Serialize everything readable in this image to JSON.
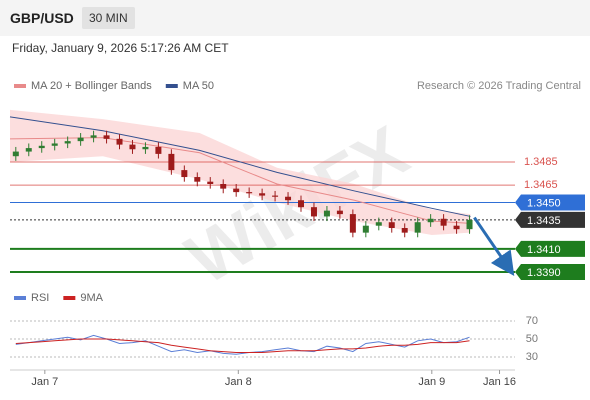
{
  "header": {
    "symbol": "GBP/USD",
    "timeframe": "30 MIN",
    "timestamp": "Friday, January 9, 2026 5:17:26 AM CET"
  },
  "watermark": "WikiFX",
  "chart_data": [
    {
      "type": "candlestick",
      "source": "Research © 2026 Trading Central",
      "xlim": [
        -0.18,
        2.43
      ],
      "ylim": [
        1.3375,
        1.3545
      ],
      "colors": {
        "up": "#2f7d32",
        "down": "#9e1c1c"
      },
      "x": [
        -0.15,
        -0.083,
        -0.016,
        0.051,
        0.118,
        0.185,
        0.252,
        0.319,
        0.386,
        0.453,
        0.52,
        0.587,
        0.654,
        0.721,
        0.788,
        0.855,
        0.922,
        0.989,
        1.056,
        1.123,
        1.19,
        1.257,
        1.324,
        1.391,
        1.458,
        1.525,
        1.592,
        1.659,
        1.726,
        1.793,
        1.86,
        1.927,
        1.994,
        2.061,
        2.128,
        2.195
      ],
      "open": [
        1.349,
        1.3494,
        1.3497,
        1.3499,
        1.3501,
        1.3503,
        1.3506,
        1.3508,
        1.3505,
        1.35,
        1.3496,
        1.3498,
        1.3492,
        1.3478,
        1.3472,
        1.3468,
        1.3466,
        1.3462,
        1.3459,
        1.3458,
        1.3456,
        1.3455,
        1.3452,
        1.3446,
        1.3438,
        1.3443,
        1.344,
        1.3424,
        1.343,
        1.3433,
        1.3428,
        1.3424,
        1.3433,
        1.3436,
        1.343,
        1.3427
      ],
      "high": [
        1.3498,
        1.3501,
        1.3503,
        1.3505,
        1.3507,
        1.351,
        1.3512,
        1.3512,
        1.3509,
        1.3504,
        1.3502,
        1.3502,
        1.3496,
        1.3482,
        1.3476,
        1.3472,
        1.347,
        1.3466,
        1.3463,
        1.3462,
        1.346,
        1.3459,
        1.3456,
        1.345,
        1.3447,
        1.3447,
        1.3444,
        1.3434,
        1.3437,
        1.3437,
        1.3432,
        1.3437,
        1.344,
        1.344,
        1.3434,
        1.3439
      ],
      "low": [
        1.3486,
        1.349,
        1.3493,
        1.3495,
        1.3497,
        1.3499,
        1.3502,
        1.3501,
        1.3496,
        1.3492,
        1.3492,
        1.3488,
        1.3474,
        1.3468,
        1.3464,
        1.3462,
        1.3458,
        1.3455,
        1.3454,
        1.3452,
        1.3451,
        1.3448,
        1.3442,
        1.3434,
        1.3434,
        1.3436,
        1.342,
        1.342,
        1.3426,
        1.3424,
        1.342,
        1.342,
        1.3429,
        1.3426,
        1.3423,
        1.3423
      ],
      "close": [
        1.3494,
        1.3497,
        1.3499,
        1.3501,
        1.3503,
        1.3506,
        1.3508,
        1.3505,
        1.35,
        1.3496,
        1.3498,
        1.3492,
        1.3478,
        1.3472,
        1.3468,
        1.3466,
        1.3462,
        1.3459,
        1.3458,
        1.3456,
        1.3455,
        1.3452,
        1.3446,
        1.3438,
        1.3443,
        1.344,
        1.3424,
        1.343,
        1.3433,
        1.3428,
        1.3424,
        1.3433,
        1.3436,
        1.343,
        1.3427,
        1.3435
      ],
      "series": [
        {
          "name": "MA 20 + Bollinger Bands",
          "color": "#e88a8a",
          "band_color": "#fbd6d6",
          "x": [
            -0.18,
            0.3,
            0.8,
            1.2,
            1.6,
            2.0,
            2.2
          ],
          "values": [
            1.3505,
            1.3506,
            1.3493,
            1.3466,
            1.3452,
            1.3434,
            1.3432
          ],
          "upper": [
            1.353,
            1.3522,
            1.351,
            1.348,
            1.3466,
            1.3444,
            1.344
          ],
          "lower": [
            1.3485,
            1.349,
            1.347,
            1.345,
            1.3434,
            1.3422,
            1.3424
          ]
        },
        {
          "name": "MA 50",
          "color": "#34508f",
          "x": [
            -0.18,
            0.3,
            0.8,
            1.2,
            1.6,
            2.0,
            2.2
          ],
          "values": [
            1.3524,
            1.3512,
            1.3495,
            1.3476,
            1.346,
            1.3445,
            1.3438
          ]
        }
      ],
      "levels": [
        {
          "value": 1.3485,
          "label": "1.3485",
          "color": "#d9534f",
          "style": "text"
        },
        {
          "value": 1.3465,
          "label": "1.3465",
          "color": "#d9534f",
          "style": "text"
        },
        {
          "value": 1.345,
          "label": "1.3450",
          "color": "#2f6fd6",
          "style": "badge"
        },
        {
          "value": 1.3435,
          "label": "1.3435",
          "color": "#333333",
          "style": "dotted-badge"
        },
        {
          "value": 1.341,
          "label": "1.3410",
          "color": "#1e7d1e",
          "style": "badge"
        },
        {
          "value": 1.339,
          "label": "1.3390",
          "color": "#1e7d1e",
          "style": "badge"
        }
      ],
      "forecast": {
        "x": [
          2.22,
          2.4
        ],
        "values": [
          1.3437,
          1.3393
        ],
        "color": "#2a6db3"
      }
    },
    {
      "type": "line",
      "xlim": [
        -0.18,
        2.43
      ],
      "ylim": [
        20,
        80
      ],
      "yticks": [
        30,
        50,
        70
      ],
      "xticks": [
        {
          "value": 0,
          "label": "Jan 7"
        },
        {
          "value": 1,
          "label": "Jan 8"
        },
        {
          "value": 2,
          "label": "Jan 9"
        },
        {
          "value": 2.35,
          "label": "Jan 16"
        }
      ],
      "series": [
        {
          "name": "RSI",
          "color": "#5b7fd6",
          "x": [
            -0.15,
            -0.083,
            -0.016,
            0.051,
            0.118,
            0.185,
            0.252,
            0.319,
            0.386,
            0.453,
            0.52,
            0.587,
            0.654,
            0.721,
            0.788,
            0.855,
            0.922,
            0.989,
            1.056,
            1.123,
            1.19,
            1.257,
            1.324,
            1.391,
            1.458,
            1.525,
            1.592,
            1.659,
            1.726,
            1.793,
            1.86,
            1.927,
            1.994,
            2.061,
            2.128,
            2.195
          ],
          "values": [
            44,
            46,
            48,
            50,
            52,
            49,
            54,
            50,
            45,
            46,
            48,
            42,
            36,
            38,
            35,
            37,
            34,
            33,
            35,
            36,
            38,
            40,
            37,
            36,
            42,
            40,
            36,
            45,
            47,
            44,
            41,
            48,
            50,
            46,
            47,
            52
          ]
        },
        {
          "name": "9MA",
          "color": "#cc2222",
          "x": [
            -0.15,
            -0.083,
            -0.016,
            0.051,
            0.118,
            0.185,
            0.252,
            0.319,
            0.386,
            0.453,
            0.52,
            0.587,
            0.654,
            0.721,
            0.788,
            0.855,
            0.922,
            0.989,
            1.056,
            1.123,
            1.19,
            1.257,
            1.324,
            1.391,
            1.458,
            1.525,
            1.592,
            1.659,
            1.726,
            1.793,
            1.86,
            1.927,
            1.994,
            2.061,
            2.128,
            2.195
          ],
          "values": [
            45,
            46,
            47,
            48,
            49,
            50,
            50,
            50,
            49,
            48,
            47,
            46,
            43,
            41,
            39,
            37,
            36,
            35,
            35,
            35,
            36,
            37,
            37,
            37,
            38,
            39,
            39,
            40,
            42,
            43,
            43,
            44,
            46,
            46,
            46,
            48
          ]
        }
      ]
    }
  ]
}
